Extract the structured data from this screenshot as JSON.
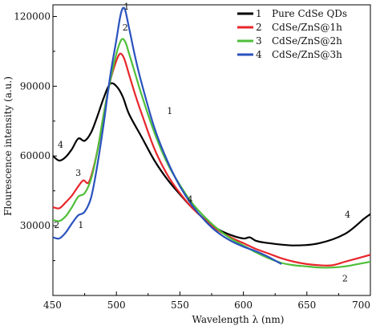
{
  "chart_data": {
    "type": "line",
    "xlabel": "Wavelength λ (nm)",
    "ylabel": "Flourescence intensity (a.u.)",
    "xlim": [
      450,
      700
    ],
    "ylim": [
      0,
      125000
    ],
    "xticks": [
      450,
      500,
      550,
      600,
      650,
      700
    ],
    "yticks": [
      30000,
      60000,
      90000,
      120000
    ],
    "grid": false,
    "legend": {
      "position": "top-right",
      "entries": [
        {
          "marker": "1",
          "label": "Pure CdSe QDs",
          "color": "#000000"
        },
        {
          "marker": "2",
          "label": "CdSe/ZnS@1h",
          "color": "#e8262b"
        },
        {
          "marker": "3",
          "label": "CdSe/ZnS@2h",
          "color": "#4fbf3a"
        },
        {
          "marker": "4",
          "label": "CdSe/ZnS@3h",
          "color": "#2a52be"
        }
      ]
    },
    "series": [
      {
        "color": "#000000",
        "points": [
          [
            450,
            60000
          ],
          [
            455,
            58000
          ],
          [
            460,
            59500
          ],
          [
            465,
            63000
          ],
          [
            470,
            67500
          ],
          [
            475,
            66500
          ],
          [
            480,
            70000
          ],
          [
            485,
            77000
          ],
          [
            490,
            85000
          ],
          [
            495,
            91000
          ],
          [
            500,
            90000
          ],
          [
            505,
            85500
          ],
          [
            510,
            78000
          ],
          [
            520,
            68000
          ],
          [
            530,
            58000
          ],
          [
            540,
            50000
          ],
          [
            550,
            43500
          ],
          [
            560,
            37500
          ],
          [
            570,
            32500
          ],
          [
            580,
            28500
          ],
          [
            590,
            26000
          ],
          [
            600,
            24500
          ],
          [
            605,
            25000
          ],
          [
            610,
            23500
          ],
          [
            620,
            22500
          ],
          [
            640,
            21500
          ],
          [
            660,
            22500
          ],
          [
            680,
            26500
          ],
          [
            695,
            33000
          ],
          [
            700,
            35000
          ]
        ]
      },
      {
        "color": "#e8262b",
        "points": [
          [
            450,
            38000
          ],
          [
            455,
            37500
          ],
          [
            460,
            40000
          ],
          [
            465,
            43000
          ],
          [
            470,
            47000
          ],
          [
            474,
            49500
          ],
          [
            478,
            48500
          ],
          [
            482,
            55000
          ],
          [
            486,
            65000
          ],
          [
            490,
            78000
          ],
          [
            495,
            92000
          ],
          [
            500,
            101000
          ],
          [
            503,
            104000
          ],
          [
            506,
            102000
          ],
          [
            510,
            95000
          ],
          [
            515,
            86000
          ],
          [
            520,
            78000
          ],
          [
            530,
            63000
          ],
          [
            540,
            52000
          ],
          [
            550,
            44000
          ],
          [
            560,
            37500
          ],
          [
            570,
            32500
          ],
          [
            580,
            28000
          ],
          [
            590,
            25000
          ],
          [
            600,
            22500
          ],
          [
            610,
            20000
          ],
          [
            620,
            18000
          ],
          [
            630,
            16000
          ],
          [
            640,
            14500
          ],
          [
            650,
            13500
          ],
          [
            660,
            13000
          ],
          [
            670,
            13000
          ],
          [
            680,
            14500
          ],
          [
            690,
            16000
          ],
          [
            700,
            17500
          ]
        ]
      },
      {
        "color": "#4fbf3a",
        "points": [
          [
            450,
            32500
          ],
          [
            455,
            32000
          ],
          [
            460,
            34000
          ],
          [
            465,
            38000
          ],
          [
            470,
            42500
          ],
          [
            475,
            44000
          ],
          [
            480,
            50000
          ],
          [
            485,
            62000
          ],
          [
            490,
            78000
          ],
          [
            495,
            92000
          ],
          [
            500,
            104000
          ],
          [
            504,
            110000
          ],
          [
            507,
            109000
          ],
          [
            510,
            104000
          ],
          [
            515,
            95000
          ],
          [
            520,
            86000
          ],
          [
            530,
            70000
          ],
          [
            540,
            57000
          ],
          [
            550,
            47500
          ],
          [
            560,
            39500
          ],
          [
            570,
            33500
          ],
          [
            580,
            28500
          ],
          [
            590,
            24500
          ],
          [
            600,
            21500
          ],
          [
            610,
            18500
          ],
          [
            620,
            16000
          ],
          [
            630,
            14000
          ],
          [
            640,
            13000
          ],
          [
            650,
            12500
          ],
          [
            660,
            12000
          ],
          [
            670,
            12000
          ],
          [
            680,
            12500
          ],
          [
            690,
            13500
          ],
          [
            700,
            14500
          ]
        ]
      },
      {
        "color": "#2a52be",
        "points": [
          [
            450,
            25000
          ],
          [
            455,
            24500
          ],
          [
            460,
            27000
          ],
          [
            465,
            31000
          ],
          [
            470,
            34500
          ],
          [
            475,
            36000
          ],
          [
            480,
            42000
          ],
          [
            485,
            56000
          ],
          [
            490,
            74000
          ],
          [
            495,
            94000
          ],
          [
            500,
            110000
          ],
          [
            503,
            120000
          ],
          [
            505,
            123500
          ],
          [
            507,
            122500
          ],
          [
            510,
            115000
          ],
          [
            515,
            102000
          ],
          [
            520,
            91000
          ],
          [
            530,
            72000
          ],
          [
            540,
            58000
          ],
          [
            550,
            47000
          ],
          [
            560,
            38500
          ],
          [
            570,
            32000
          ],
          [
            580,
            27000
          ],
          [
            590,
            23500
          ],
          [
            600,
            21000
          ],
          [
            610,
            19000
          ],
          [
            620,
            16500
          ],
          [
            630,
            13500
          ]
        ]
      }
    ],
    "curve_labels": [
      {
        "text": "1",
        "x": 508,
        "y": 123000
      },
      {
        "text": "2",
        "x": 507,
        "y": 114000
      },
      {
        "text": "1",
        "x": 542,
        "y": 78000
      },
      {
        "text": "4",
        "x": 456,
        "y": 63500
      },
      {
        "text": "3",
        "x": 470,
        "y": 51500
      },
      {
        "text": "4",
        "x": 558,
        "y": 40000
      },
      {
        "text": "2",
        "x": 453,
        "y": 29000
      },
      {
        "text": "1",
        "x": 472,
        "y": 29000
      },
      {
        "text": "4",
        "x": 682,
        "y": 33500
      },
      {
        "text": "2",
        "x": 680,
        "y": 6000
      }
    ]
  }
}
